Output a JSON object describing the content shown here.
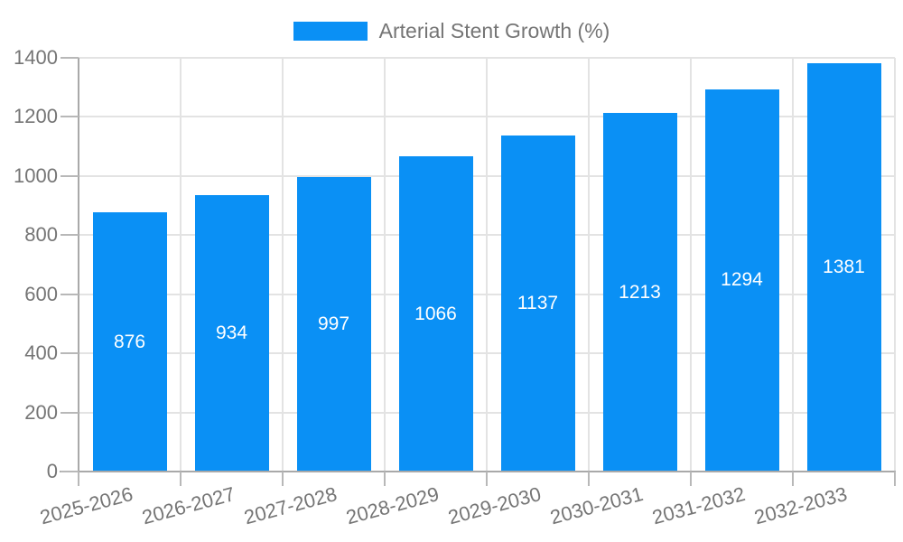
{
  "chart_data": {
    "type": "bar",
    "title": "Arterial Stent Growth (%)",
    "categories": [
      "2025-2026",
      "2026-2027",
      "2027-2028",
      "2028-2029",
      "2029-2030",
      "2030-2031",
      "2031-2032",
      "2032-2033"
    ],
    "values": [
      876,
      934,
      997,
      1066,
      1137,
      1213,
      1294,
      1381
    ],
    "series_name": "Arterial Stent Growth (%)",
    "xlabel": "",
    "ylabel": "",
    "ylim": [
      0,
      1400
    ],
    "yticks": [
      0,
      200,
      400,
      600,
      800,
      1000,
      1200,
      1400
    ],
    "grid": true,
    "legend_position": "top-center",
    "bar_labels_inside": true,
    "x_label_rotation_deg": -15
  },
  "legend": {
    "label": "Arterial Stent Growth (%)"
  },
  "colors": {
    "bar": "#0a90f5",
    "grid": "#e3e3e3",
    "axis": "#a9a9a9",
    "tick": "#b8b8b8",
    "label": "#757575",
    "bar_label": "#ffffff",
    "background": "#ffffff"
  }
}
